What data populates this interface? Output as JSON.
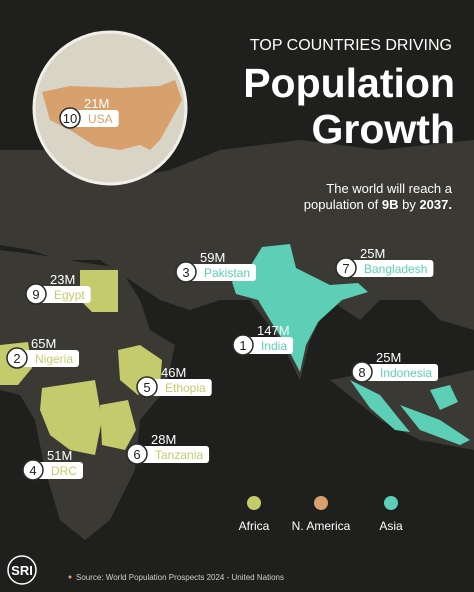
{
  "header": {
    "kicker": "TOP COUNTRIES DRIVING",
    "title_line1": "Population",
    "title_line2": "Growth",
    "subtitle": [
      "The world will reach a",
      "population of ",
      "9B",
      " by ",
      "2037."
    ]
  },
  "legend": [
    {
      "label": "Africa",
      "color": "#c4cb6d"
    },
    {
      "label": "N. America",
      "color": "#d8a06c"
    },
    {
      "label": "Asia",
      "color": "#5ccfb6"
    }
  ],
  "countries": [
    {
      "rank": "10",
      "name": "USA",
      "value": "21M",
      "region": 1
    },
    {
      "rank": "3",
      "name": "Pakistan",
      "value": "59M",
      "region": 2
    },
    {
      "rank": "7",
      "name": "Bangladesh",
      "value": "25M",
      "region": 2
    },
    {
      "rank": "1",
      "name": "India",
      "value": "147M",
      "region": 2
    },
    {
      "rank": "8",
      "name": "Indonesia",
      "value": "25M",
      "region": 2
    },
    {
      "rank": "9",
      "name": "Egypt",
      "value": "23M",
      "region": 0
    },
    {
      "rank": "2",
      "name": "Nigeria",
      "value": "65M",
      "region": 0
    },
    {
      "rank": "5",
      "name": "Ethopia",
      "value": "46M",
      "region": 0
    },
    {
      "rank": "6",
      "name": "Tanzania",
      "value": "28M",
      "region": 0
    },
    {
      "rank": "4",
      "name": "DRC",
      "value": "51M",
      "region": 0
    }
  ],
  "footer": {
    "logo": "SRI",
    "source": "Source: World Population Prospects 2024 - United Nations"
  }
}
